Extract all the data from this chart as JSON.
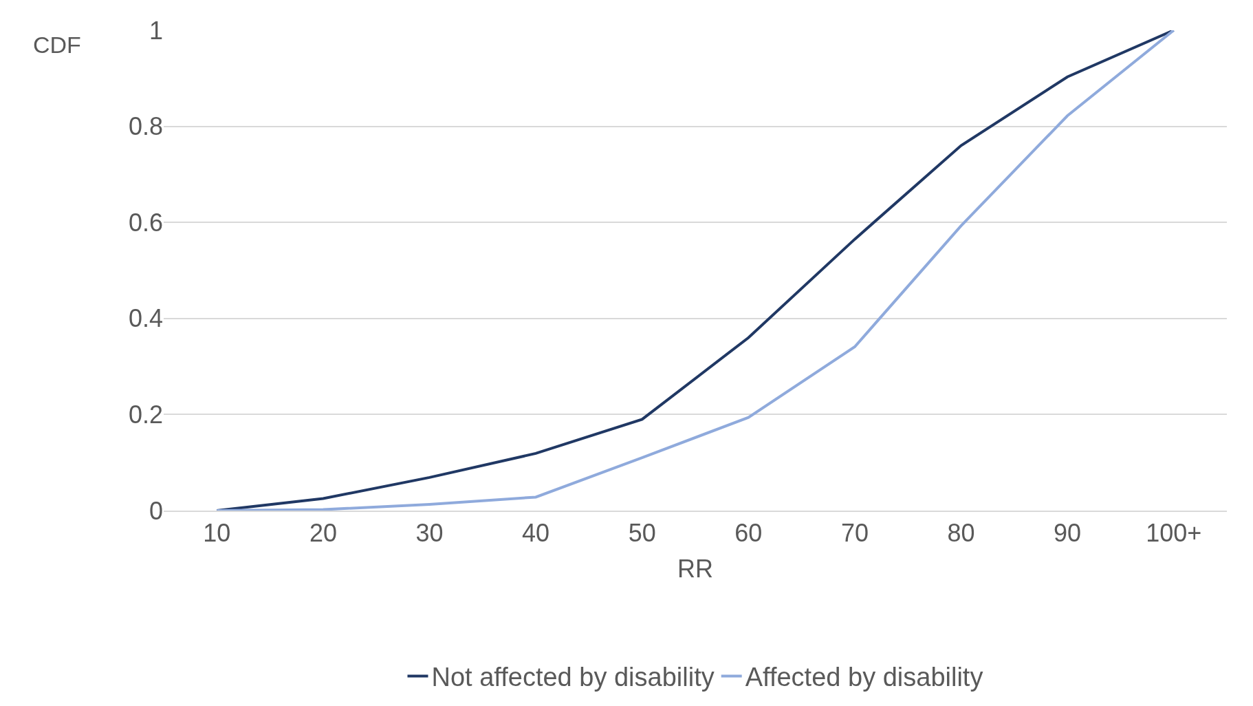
{
  "chart_data": {
    "type": "line",
    "xlabel": "RR",
    "ylabel": "CDF",
    "categories": [
      "10",
      "20",
      "30",
      "40",
      "50",
      "60",
      "70",
      "80",
      "90",
      "100+"
    ],
    "series": [
      {
        "name": "Not affected by disability",
        "color": "#203864",
        "values": [
          0,
          0.025,
          0.069,
          0.119,
          0.19,
          0.36,
          0.565,
          0.76,
          0.903,
          1
        ]
      },
      {
        "name": "Affected by disability",
        "color": "#8faadc",
        "values": [
          0,
          0.002,
          0.013,
          0.028,
          0.11,
          0.194,
          0.341,
          0.593,
          0.822,
          1
        ]
      }
    ],
    "ylim": [
      0,
      1
    ],
    "yticks": [
      0,
      0.2,
      0.4,
      0.6,
      0.8,
      1
    ],
    "grid": "y",
    "legend": "bottom",
    "marker": "none",
    "line_style": "solid"
  }
}
